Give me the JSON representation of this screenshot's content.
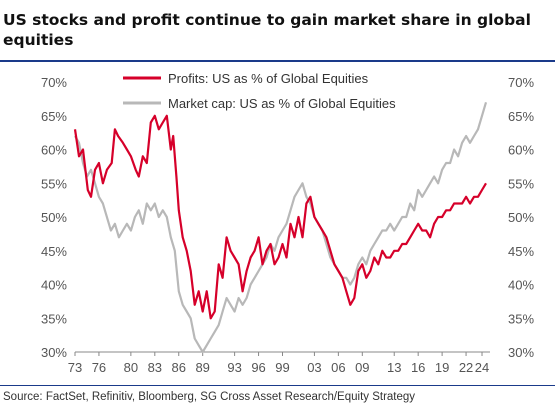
{
  "title": "US stocks and profit continue to gain market share in global equities",
  "source": "Source: FactSet, Refinitiv, Bloomberg, SG Cross Asset Research/Equity Strategy",
  "chart_data": {
    "type": "line",
    "ylim": [
      30,
      70
    ],
    "xlim": [
      1973,
      2025
    ],
    "yticks": [
      "30%",
      "35%",
      "40%",
      "45%",
      "50%",
      "55%",
      "60%",
      "65%",
      "70%"
    ],
    "ytick_values": [
      30,
      35,
      40,
      45,
      50,
      55,
      60,
      65,
      70
    ],
    "xticks": [
      "73",
      "76",
      "80",
      "83",
      "86",
      "89",
      "93",
      "96",
      "99",
      "03",
      "06",
      "09",
      "13",
      "16",
      "19",
      "22",
      "24"
    ],
    "xtick_values": [
      1973,
      1976,
      1980,
      1983,
      1986,
      1989,
      1993,
      1996,
      1999,
      2003,
      2006,
      2009,
      2013,
      2016,
      2019,
      2022,
      2024
    ],
    "grid": false,
    "legend_position": "top-center",
    "series": [
      {
        "name": "Profits: US as % of Global Equities",
        "color": "#d6002a",
        "points": [
          [
            1973.0,
            63
          ],
          [
            1973.5,
            59
          ],
          [
            1974.0,
            60
          ],
          [
            1974.6,
            54
          ],
          [
            1975.0,
            53
          ],
          [
            1975.5,
            57
          ],
          [
            1976.0,
            58
          ],
          [
            1976.5,
            55
          ],
          [
            1977.0,
            57
          ],
          [
            1977.6,
            58
          ],
          [
            1978.0,
            63
          ],
          [
            1978.4,
            62
          ],
          [
            1979.0,
            61
          ],
          [
            1979.5,
            60
          ],
          [
            1980.0,
            59
          ],
          [
            1980.6,
            57
          ],
          [
            1981.0,
            56
          ],
          [
            1981.5,
            59
          ],
          [
            1982.0,
            58
          ],
          [
            1982.5,
            64
          ],
          [
            1983.0,
            65
          ],
          [
            1983.5,
            63
          ],
          [
            1984.0,
            64
          ],
          [
            1984.5,
            65
          ],
          [
            1985.0,
            60
          ],
          [
            1985.3,
            62
          ],
          [
            1985.7,
            56
          ],
          [
            1986.0,
            51
          ],
          [
            1986.5,
            47
          ],
          [
            1987.0,
            45
          ],
          [
            1987.5,
            42
          ],
          [
            1988.0,
            37
          ],
          [
            1988.5,
            39
          ],
          [
            1989.0,
            36
          ],
          [
            1989.5,
            39
          ],
          [
            1990.0,
            35
          ],
          [
            1990.5,
            36
          ],
          [
            1991.0,
            43
          ],
          [
            1991.5,
            41
          ],
          [
            1992.0,
            47
          ],
          [
            1992.5,
            45
          ],
          [
            1993.0,
            44
          ],
          [
            1993.5,
            43
          ],
          [
            1994.0,
            39
          ],
          [
            1994.5,
            42
          ],
          [
            1995.0,
            44
          ],
          [
            1995.5,
            45
          ],
          [
            1996.0,
            47
          ],
          [
            1996.5,
            43
          ],
          [
            1997.0,
            45
          ],
          [
            1997.5,
            46
          ],
          [
            1998.0,
            43
          ],
          [
            1998.5,
            44
          ],
          [
            1999.0,
            46
          ],
          [
            1999.5,
            44
          ],
          [
            2000.0,
            49
          ],
          [
            2000.5,
            47
          ],
          [
            2001.0,
            50
          ],
          [
            2001.5,
            47
          ],
          [
            2002.0,
            52
          ],
          [
            2002.5,
            53
          ],
          [
            2003.0,
            50
          ],
          [
            2003.5,
            49
          ],
          [
            2004.0,
            48
          ],
          [
            2004.5,
            47
          ],
          [
            2005.0,
            45
          ],
          [
            2005.5,
            43
          ],
          [
            2006.0,
            42
          ],
          [
            2006.5,
            41
          ],
          [
            2007.0,
            39
          ],
          [
            2007.5,
            37
          ],
          [
            2008.0,
            38
          ],
          [
            2008.5,
            42
          ],
          [
            2009.0,
            43
          ],
          [
            2009.5,
            41
          ],
          [
            2010.0,
            42
          ],
          [
            2010.5,
            44
          ],
          [
            2011.0,
            43
          ],
          [
            2011.5,
            45
          ],
          [
            2012.0,
            44
          ],
          [
            2012.5,
            44
          ],
          [
            2013.0,
            45
          ],
          [
            2013.5,
            45
          ],
          [
            2014.0,
            46
          ],
          [
            2014.5,
            46
          ],
          [
            2015.0,
            47
          ],
          [
            2015.5,
            48
          ],
          [
            2016.0,
            49
          ],
          [
            2016.5,
            48
          ],
          [
            2017.0,
            48
          ],
          [
            2017.5,
            47
          ],
          [
            2018.0,
            49
          ],
          [
            2018.5,
            50
          ],
          [
            2019.0,
            50
          ],
          [
            2019.5,
            51
          ],
          [
            2020.0,
            51
          ],
          [
            2020.5,
            52
          ],
          [
            2021.0,
            52
          ],
          [
            2021.5,
            52
          ],
          [
            2022.0,
            53
          ],
          [
            2022.5,
            52
          ],
          [
            2023.0,
            53
          ],
          [
            2023.5,
            53
          ],
          [
            2024.0,
            54
          ],
          [
            2024.5,
            55
          ]
        ]
      },
      {
        "name": "Market cap: US as % of Global Equities",
        "color": "#b8b8b8",
        "points": [
          [
            1973.0,
            62
          ],
          [
            1973.5,
            61
          ],
          [
            1974.0,
            58
          ],
          [
            1974.5,
            56
          ],
          [
            1975.0,
            57
          ],
          [
            1975.5,
            55
          ],
          [
            1976.0,
            53
          ],
          [
            1976.5,
            52
          ],
          [
            1977.0,
            50
          ],
          [
            1977.5,
            48
          ],
          [
            1978.0,
            49
          ],
          [
            1978.5,
            47
          ],
          [
            1979.0,
            48
          ],
          [
            1979.5,
            49
          ],
          [
            1980.0,
            48
          ],
          [
            1980.5,
            50
          ],
          [
            1981.0,
            51
          ],
          [
            1981.5,
            49
          ],
          [
            1982.0,
            52
          ],
          [
            1982.5,
            51
          ],
          [
            1983.0,
            52
          ],
          [
            1983.5,
            50
          ],
          [
            1984.0,
            51
          ],
          [
            1984.5,
            50
          ],
          [
            1985.0,
            47
          ],
          [
            1985.5,
            45
          ],
          [
            1986.0,
            39
          ],
          [
            1986.5,
            37
          ],
          [
            1987.0,
            36
          ],
          [
            1987.5,
            35
          ],
          [
            1988.0,
            32
          ],
          [
            1988.5,
            31
          ],
          [
            1989.0,
            30
          ],
          [
            1989.5,
            31
          ],
          [
            1990.0,
            32
          ],
          [
            1990.5,
            33
          ],
          [
            1991.0,
            34
          ],
          [
            1991.5,
            36
          ],
          [
            1992.0,
            38
          ],
          [
            1992.5,
            37
          ],
          [
            1993.0,
            36
          ],
          [
            1993.5,
            38
          ],
          [
            1994.0,
            37
          ],
          [
            1994.5,
            38
          ],
          [
            1995.0,
            40
          ],
          [
            1995.5,
            41
          ],
          [
            1996.0,
            42
          ],
          [
            1996.5,
            43
          ],
          [
            1997.0,
            44
          ],
          [
            1997.5,
            46
          ],
          [
            1998.0,
            45
          ],
          [
            1998.5,
            47
          ],
          [
            1999.0,
            48
          ],
          [
            1999.5,
            49
          ],
          [
            2000.0,
            51
          ],
          [
            2000.5,
            53
          ],
          [
            2001.0,
            54
          ],
          [
            2001.5,
            55
          ],
          [
            2002.0,
            53
          ],
          [
            2002.5,
            52
          ],
          [
            2003.0,
            50
          ],
          [
            2003.5,
            49
          ],
          [
            2004.0,
            48
          ],
          [
            2004.5,
            46
          ],
          [
            2005.0,
            44
          ],
          [
            2005.5,
            43
          ],
          [
            2006.0,
            42
          ],
          [
            2006.5,
            41
          ],
          [
            2007.0,
            41
          ],
          [
            2007.5,
            40
          ],
          [
            2008.0,
            41
          ],
          [
            2008.5,
            43
          ],
          [
            2009.0,
            44
          ],
          [
            2009.5,
            43
          ],
          [
            2010.0,
            45
          ],
          [
            2010.5,
            46
          ],
          [
            2011.0,
            47
          ],
          [
            2011.5,
            48
          ],
          [
            2012.0,
            48
          ],
          [
            2012.5,
            49
          ],
          [
            2013.0,
            48
          ],
          [
            2013.5,
            49
          ],
          [
            2014.0,
            50
          ],
          [
            2014.5,
            50
          ],
          [
            2015.0,
            52
          ],
          [
            2015.5,
            51
          ],
          [
            2016.0,
            54
          ],
          [
            2016.5,
            53
          ],
          [
            2017.0,
            54
          ],
          [
            2017.5,
            55
          ],
          [
            2018.0,
            56
          ],
          [
            2018.5,
            55
          ],
          [
            2019.0,
            57
          ],
          [
            2019.5,
            58
          ],
          [
            2020.0,
            58
          ],
          [
            2020.5,
            60
          ],
          [
            2021.0,
            59
          ],
          [
            2021.5,
            61
          ],
          [
            2022.0,
            62
          ],
          [
            2022.5,
            61
          ],
          [
            2023.0,
            62
          ],
          [
            2023.5,
            63
          ],
          [
            2024.0,
            65
          ],
          [
            2024.5,
            67
          ]
        ]
      }
    ]
  }
}
